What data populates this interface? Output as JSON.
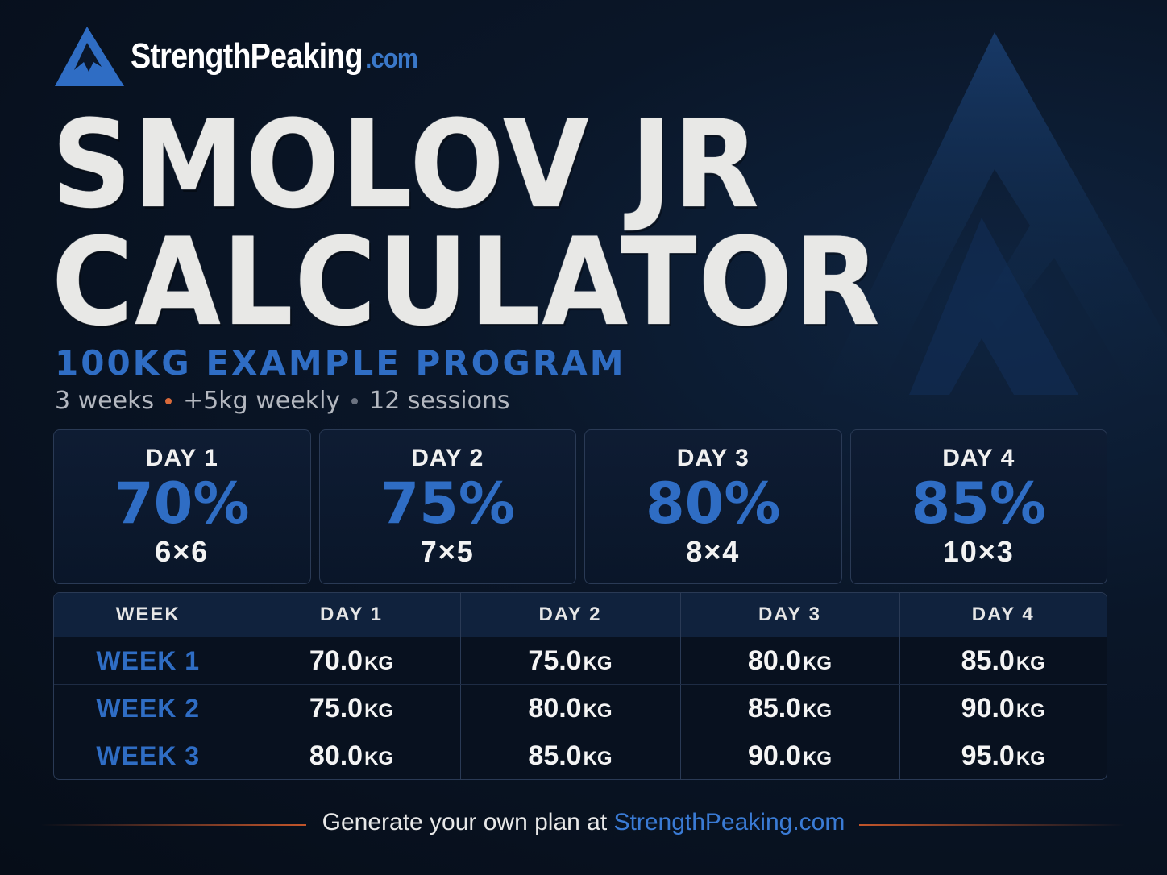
{
  "brand": {
    "name": "StrengthPeaking",
    "tld": ".com"
  },
  "title": {
    "line1": "SMOLOV JR",
    "line2": "CALCULATOR"
  },
  "subtitle": "100KG EXAMPLE PROGRAM",
  "meta": {
    "weeks": "3 weeks",
    "increment": "+5kg weekly",
    "sessions": "12 sessions"
  },
  "colors": {
    "accent": "#2f6dc4",
    "background": "#0a1628",
    "dot_orange": "#d96a3a"
  },
  "days": [
    {
      "label": "DAY 1",
      "pct": "70%",
      "sets": "6×6"
    },
    {
      "label": "DAY 2",
      "pct": "75%",
      "sets": "7×5"
    },
    {
      "label": "DAY 3",
      "pct": "80%",
      "sets": "8×4"
    },
    {
      "label": "DAY 4",
      "pct": "85%",
      "sets": "10×3"
    }
  ],
  "table": {
    "headers": [
      "WEEK",
      "DAY 1",
      "DAY 2",
      "DAY 3",
      "DAY 4"
    ],
    "unit": "KG",
    "rows": [
      {
        "week": "WEEK 1",
        "values": [
          "70.0",
          "75.0",
          "80.0",
          "85.0"
        ]
      },
      {
        "week": "WEEK 2",
        "values": [
          "75.0",
          "80.0",
          "85.0",
          "90.0"
        ]
      },
      {
        "week": "WEEK 3",
        "values": [
          "80.0",
          "85.0",
          "90.0",
          "95.0"
        ]
      }
    ]
  },
  "footer": {
    "text": "Generate your own plan at ",
    "link": "StrengthPeaking.com"
  }
}
